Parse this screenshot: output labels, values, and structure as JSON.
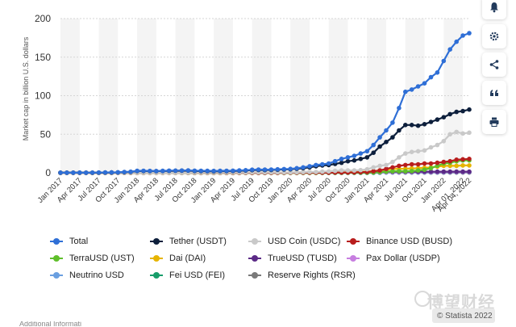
{
  "sidebar": {
    "buttons": [
      {
        "name": "notification-bell-icon",
        "label": "bell"
      },
      {
        "name": "settings-gear-icon",
        "label": "gear"
      },
      {
        "name": "share-icon",
        "label": "share"
      },
      {
        "name": "cite-quote-icon",
        "label": "quote"
      },
      {
        "name": "print-icon",
        "label": "print"
      }
    ]
  },
  "watermark": {
    "text": "博望财经"
  },
  "credit": {
    "text": "© Statista 2022"
  },
  "bottom_fragment": {
    "text": "Additional Informati"
  },
  "chart_data": {
    "type": "line",
    "title": "",
    "xlabel": "",
    "ylabel": "Market cap in billion U.S. dollars",
    "ylim": [
      0,
      200
    ],
    "yticks": [
      0,
      50,
      100,
      150,
      200
    ],
    "grid": true,
    "legend_position": "bottom",
    "tick_labels": [
      "Jan 2017",
      "Apr 2017",
      "Jul 2017",
      "Oct 2017",
      "Jan 2018",
      "Apr 2018",
      "Jul 2018",
      "Oct 2018",
      "Jan 2019",
      "Apr 2019",
      "Jul 2019",
      "Oct 2019",
      "Jan 2020",
      "Apr 2020",
      "Jul 2020",
      "Oct 2020",
      "Jan 2021",
      "Apr 2021",
      "Jul 2021",
      "Oct 2021",
      "Jan 2022",
      "Apr 01, 2022",
      "Apr 04, 2022"
    ],
    "x": [
      "Jan 2017",
      "Feb 2017",
      "Mar 2017",
      "Apr 2017",
      "May 2017",
      "Jun 2017",
      "Jul 2017",
      "Aug 2017",
      "Sep 2017",
      "Oct 2017",
      "Nov 2017",
      "Dec 2017",
      "Jan 2018",
      "Feb 2018",
      "Mar 2018",
      "Apr 2018",
      "May 2018",
      "Jun 2018",
      "Jul 2018",
      "Aug 2018",
      "Sep 2018",
      "Oct 2018",
      "Nov 2018",
      "Dec 2018",
      "Jan 2019",
      "Feb 2019",
      "Mar 2019",
      "Apr 2019",
      "May 2019",
      "Jun 2019",
      "Jul 2019",
      "Aug 2019",
      "Sep 2019",
      "Oct 2019",
      "Nov 2019",
      "Dec 2019",
      "Jan 2020",
      "Feb 2020",
      "Mar 2020",
      "Apr 2020",
      "May 2020",
      "Jun 2020",
      "Jul 2020",
      "Aug 2020",
      "Sep 2020",
      "Oct 2020",
      "Nov 2020",
      "Dec 2020",
      "Jan 2021",
      "Feb 2021",
      "Mar 2021",
      "Apr 2021",
      "May 2021",
      "Jun 2021",
      "Jul 2021",
      "Aug 2021",
      "Sep 2021",
      "Oct 2021",
      "Nov 2021",
      "Dec 2021",
      "Jan 2022",
      "Feb 2022",
      "Mar 2022",
      "Apr 01, 2022",
      "Apr 04, 2022"
    ],
    "series": [
      {
        "name": "Total",
        "color": "#2f6fd6",
        "values": [
          0.1,
          0.1,
          0.1,
          0.2,
          0.1,
          0.2,
          0.3,
          0.4,
          0.5,
          0.6,
          1,
          1.4,
          2.5,
          2.6,
          2.4,
          2.3,
          2.5,
          2.7,
          2.8,
          2.9,
          3,
          2.7,
          2.6,
          2.5,
          2.4,
          2.5,
          2.6,
          2.7,
          3,
          3.3,
          4,
          4.2,
          4.1,
          4.2,
          4.5,
          4.8,
          5,
          6,
          7,
          8.5,
          10,
          11,
          12,
          15,
          18,
          20,
          22,
          25,
          28,
          36,
          46,
          55,
          65,
          84,
          105,
          108,
          112,
          116,
          124,
          130,
          145,
          160,
          170,
          178,
          181
        ]
      },
      {
        "name": "Tether (USDT)",
        "color": "#0d1f3c",
        "values": [
          0.1,
          0.1,
          0.1,
          0.1,
          0.1,
          0.1,
          0.2,
          0.3,
          0.4,
          0.5,
          0.8,
          1.2,
          2.2,
          2.3,
          2.2,
          2.1,
          2.3,
          2.5,
          2.6,
          2.7,
          2.8,
          2.3,
          2.2,
          2.1,
          2,
          2.1,
          2.2,
          2.3,
          2.6,
          2.9,
          3.5,
          3.7,
          3.6,
          3.7,
          4,
          4.3,
          4.5,
          5.2,
          6,
          7,
          8.5,
          9.5,
          10,
          11.5,
          13,
          15,
          16,
          18,
          20,
          26,
          34,
          40,
          46,
          55,
          62,
          62,
          61,
          63,
          66,
          69,
          72,
          76,
          79,
          80,
          82
        ]
      },
      {
        "name": "USD Coin (USDC)",
        "color": "#c9c9c9",
        "values": [
          0,
          0,
          0,
          0,
          0,
          0,
          0,
          0,
          0,
          0,
          0,
          0,
          0,
          0,
          0,
          0,
          0,
          0,
          0,
          0.05,
          0.1,
          0.2,
          0.2,
          0.2,
          0.2,
          0.2,
          0.3,
          0.3,
          0.4,
          0.4,
          0.5,
          0.5,
          0.5,
          0.5,
          0.5,
          0.5,
          0.5,
          0.6,
          0.8,
          1,
          1,
          1.5,
          1.8,
          2.5,
          3,
          3,
          3,
          3.5,
          4.5,
          7,
          9,
          10,
          14,
          20,
          25,
          27,
          28,
          29,
          33,
          36,
          41,
          50,
          53,
          51,
          52
        ]
      },
      {
        "name": "Binance USD (BUSD)",
        "color": "#b81d1d",
        "values": [
          0,
          0,
          0,
          0,
          0,
          0,
          0,
          0,
          0,
          0,
          0,
          0,
          0,
          0,
          0,
          0,
          0,
          0,
          0,
          0,
          0,
          0,
          0,
          0,
          0,
          0,
          0,
          0,
          0,
          0,
          0,
          0,
          0.05,
          0.05,
          0.05,
          0.1,
          0.1,
          0.1,
          0.2,
          0.2,
          0.2,
          0.2,
          0.2,
          0.3,
          0.3,
          0.4,
          0.5,
          0.8,
          1,
          2,
          3,
          5,
          7,
          9,
          10,
          11,
          11,
          12,
          12,
          13,
          14,
          15,
          17,
          17.5,
          18
        ]
      },
      {
        "name": "TerraUSD (UST)",
        "color": "#5fbf2a",
        "values": [
          0,
          0,
          0,
          0,
          0,
          0,
          0,
          0,
          0,
          0,
          0,
          0,
          0,
          0,
          0,
          0,
          0,
          0,
          0,
          0,
          0,
          0,
          0,
          0,
          0,
          0,
          0,
          0,
          0,
          0,
          0,
          0,
          0,
          0,
          0,
          0,
          0,
          0,
          0,
          0,
          0,
          0,
          0,
          0,
          0.05,
          0.1,
          0.1,
          0.2,
          0.2,
          0.4,
          0.8,
          1.5,
          2,
          2,
          2,
          2.2,
          3,
          4,
          6,
          9,
          12,
          13,
          15,
          16,
          16
        ]
      },
      {
        "name": "Dai (DAI)",
        "color": "#e6b400",
        "values": [
          0,
          0,
          0,
          0,
          0,
          0,
          0,
          0,
          0,
          0,
          0,
          0,
          0,
          0,
          0,
          0,
          0,
          0,
          0,
          0,
          0,
          0,
          0,
          0,
          0,
          0,
          0,
          0,
          0,
          0,
          0,
          0,
          0,
          0,
          0,
          0,
          0,
          0,
          0,
          0,
          0,
          0.1,
          0.2,
          0.3,
          0.5,
          0.8,
          1,
          1.2,
          1.5,
          2,
          3,
          4,
          5,
          5,
          5.2,
          5.5,
          6,
          6.5,
          7,
          8,
          9,
          9,
          9,
          9.5,
          9.5
        ]
      },
      {
        "name": "TrueUSD (TUSD)",
        "color": "#5b2a86",
        "values": [
          0,
          0,
          0,
          0,
          0,
          0,
          0,
          0,
          0,
          0,
          0,
          0,
          0.05,
          0.1,
          0.1,
          0.2,
          0.2,
          0.2,
          0.2,
          0.2,
          0.2,
          0.2,
          0.2,
          0.2,
          0.2,
          0.2,
          0.2,
          0.2,
          0.2,
          0.2,
          0.2,
          0.2,
          0.2,
          0.2,
          0.2,
          0.2,
          0.2,
          0.2,
          0.2,
          0.2,
          0.2,
          0.2,
          0.3,
          0.3,
          0.3,
          0.3,
          0.3,
          0.3,
          0.4,
          0.5,
          0.8,
          1.5,
          1.5,
          1.5,
          1.5,
          1.5,
          1.5,
          1.5,
          1.5,
          1.5,
          1.5,
          1.5,
          1.5,
          1.5,
          1.5
        ]
      },
      {
        "name": "Pax Dollar (USDP)",
        "color": "#c77ee0",
        "values": [
          0,
          0,
          0,
          0,
          0,
          0,
          0,
          0,
          0,
          0,
          0,
          0,
          0,
          0,
          0,
          0,
          0,
          0,
          0,
          0.05,
          0.1,
          0.1,
          0.1,
          0.1,
          0.1,
          0.1,
          0.1,
          0.1,
          0.2,
          0.2,
          0.2,
          0.2,
          0.2,
          0.2,
          0.2,
          0.2,
          0.2,
          0.2,
          0.2,
          0.2,
          0.2,
          0.2,
          0.3,
          0.3,
          0.3,
          0.3,
          0.3,
          0.3,
          0.3,
          0.4,
          0.5,
          0.7,
          0.8,
          0.9,
          0.9,
          0.9,
          0.9,
          0.9,
          0.9,
          0.9,
          0.9,
          0.9,
          0.9,
          0.9,
          0.9
        ]
      },
      {
        "name": "Neutrino USD",
        "color": "#6a9fe0",
        "values": [
          0,
          0,
          0,
          0,
          0,
          0,
          0,
          0,
          0,
          0,
          0,
          0,
          0,
          0,
          0,
          0,
          0,
          0,
          0,
          0,
          0,
          0,
          0,
          0,
          0,
          0,
          0,
          0,
          0,
          0,
          0,
          0,
          0,
          0,
          0,
          0,
          0,
          0,
          0,
          0,
          0,
          0,
          0,
          0,
          0,
          0,
          0,
          0,
          0,
          0.1,
          0.2,
          0.3,
          0.4,
          0.5,
          0.5,
          0.5,
          0.5,
          0.5,
          0.6,
          0.6,
          0.6,
          0.7,
          0.8,
          0.8,
          0.8
        ]
      },
      {
        "name": "Fei USD (FEI)",
        "color": "#179d6a",
        "values": [
          0,
          0,
          0,
          0,
          0,
          0,
          0,
          0,
          0,
          0,
          0,
          0,
          0,
          0,
          0,
          0,
          0,
          0,
          0,
          0,
          0,
          0,
          0,
          0,
          0,
          0,
          0,
          0,
          0,
          0,
          0,
          0,
          0,
          0,
          0,
          0,
          0,
          0,
          0,
          0,
          0,
          0,
          0,
          0,
          0,
          0,
          0,
          0,
          0,
          0,
          0,
          0.5,
          1,
          0.8,
          0.6,
          0.6,
          0.5,
          0.5,
          0.5,
          0.5,
          0.5,
          0.5,
          0.6,
          0.6,
          0.6
        ]
      },
      {
        "name": "Reserve Rights (RSR)",
        "color": "#7a7a7a",
        "values": [
          0,
          0,
          0,
          0,
          0,
          0,
          0,
          0,
          0,
          0,
          0,
          0,
          0,
          0,
          0,
          0,
          0,
          0,
          0,
          0,
          0,
          0,
          0,
          0,
          0,
          0,
          0,
          0,
          0,
          0,
          0.05,
          0.05,
          0.05,
          0.05,
          0.05,
          0.05,
          0.05,
          0.05,
          0.05,
          0.05,
          0.05,
          0.05,
          0.05,
          0.05,
          0.05,
          0.1,
          0.1,
          0.1,
          0.1,
          0.2,
          0.3,
          0.5,
          0.4,
          0.3,
          0.3,
          0.3,
          0.3,
          0.3,
          0.3,
          0.3,
          0.3,
          0.3,
          0.3,
          0.3,
          0.3
        ]
      }
    ]
  }
}
